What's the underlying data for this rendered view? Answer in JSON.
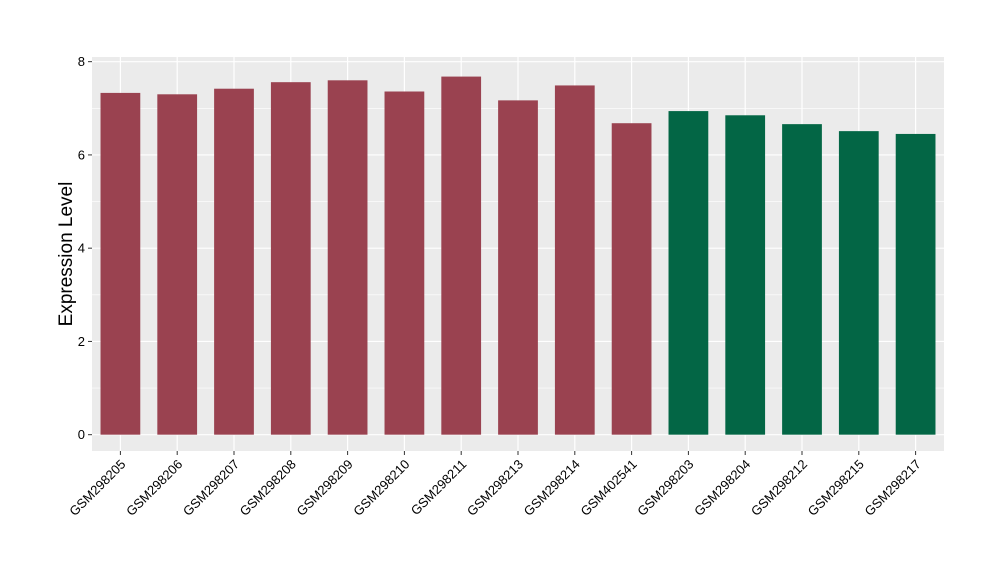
{
  "chart_data": {
    "type": "bar",
    "title": "",
    "xlabel": "",
    "ylabel": "Expression Level",
    "ylim": [
      -0.35,
      8.1
    ],
    "yticks": [
      0,
      2,
      4,
      6,
      8
    ],
    "grid": true,
    "categories": [
      "GSM298205",
      "GSM298206",
      "GSM298207",
      "GSM298208",
      "GSM298209",
      "GSM298210",
      "GSM298211",
      "GSM298213",
      "GSM298214",
      "GSM402541",
      "GSM298203",
      "GSM298204",
      "GSM298212",
      "GSM298215",
      "GSM298217"
    ],
    "values": [
      7.33,
      7.3,
      7.42,
      7.56,
      7.6,
      7.36,
      7.68,
      7.17,
      7.49,
      6.68,
      6.94,
      6.85,
      6.66,
      6.51,
      6.45
    ],
    "bar_colors": [
      "#9A4250",
      "#9A4250",
      "#9A4250",
      "#9A4250",
      "#9A4250",
      "#9A4250",
      "#9A4250",
      "#9A4250",
      "#9A4250",
      "#9A4250",
      "#036645",
      "#036645",
      "#036645",
      "#036645",
      "#036645"
    ],
    "panel_background": "#EBEBEB",
    "gridline_color": "#FFFFFF"
  }
}
